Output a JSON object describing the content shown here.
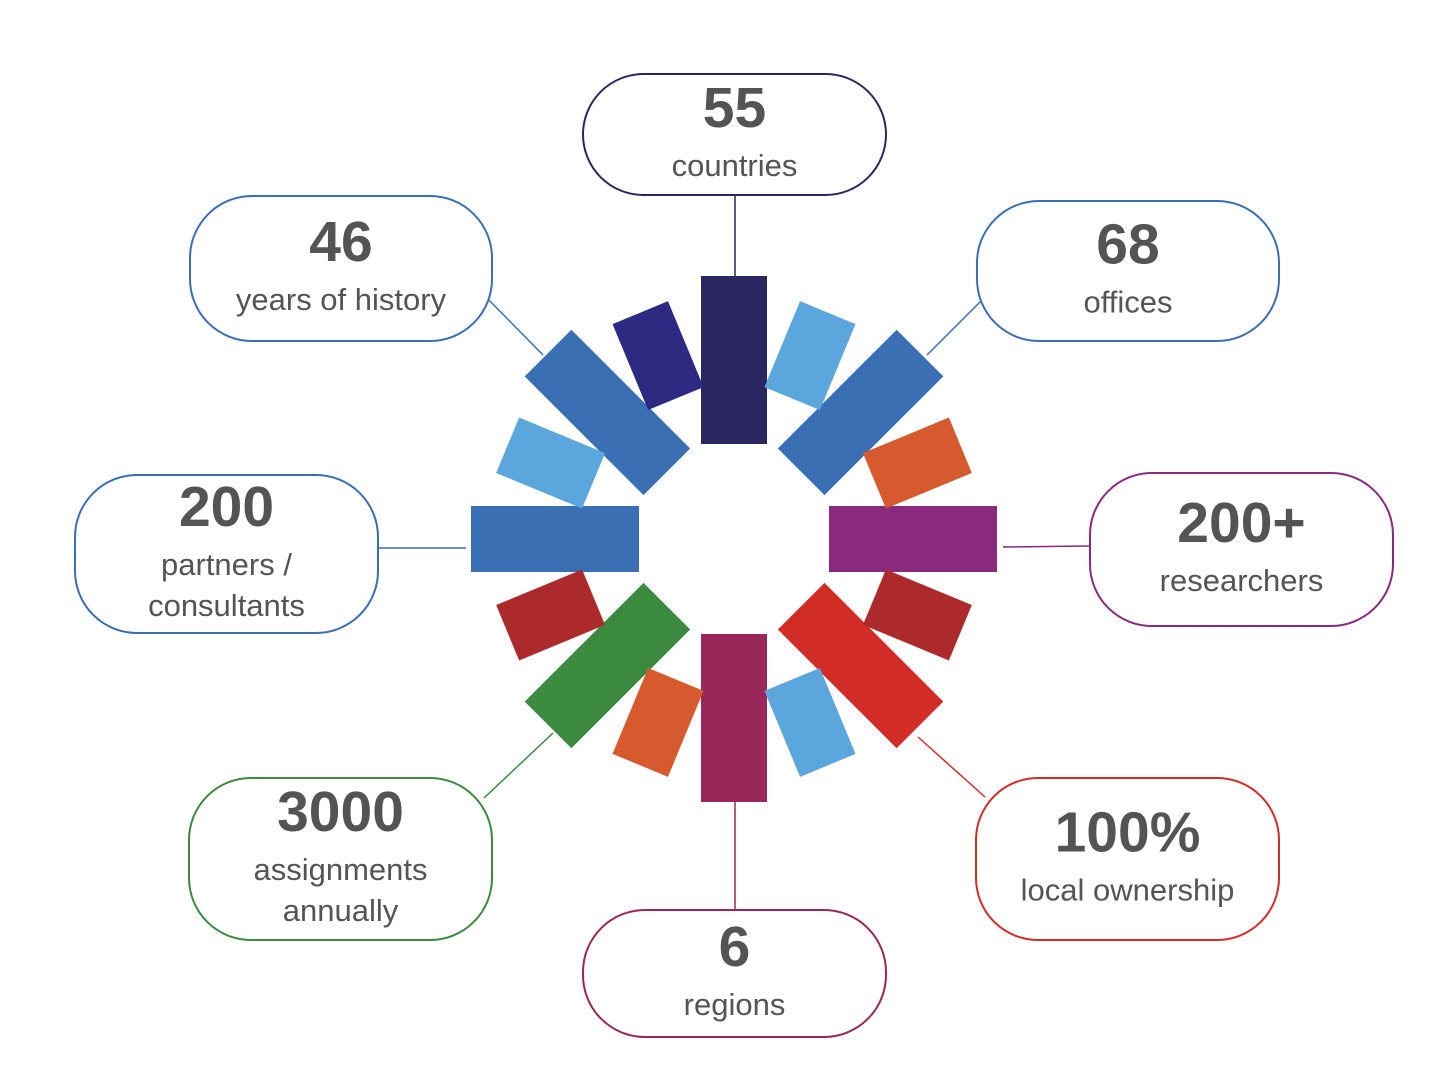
{
  "stats": [
    {
      "id": "countries",
      "value": "55",
      "label_lines": [
        "countries"
      ],
      "color": "#2a2660"
    },
    {
      "id": "offices",
      "value": "68",
      "label_lines": [
        "offices"
      ],
      "color": "#3a6fb3"
    },
    {
      "id": "researchers",
      "value": "200+",
      "label_lines": [
        "researchers"
      ],
      "color": "#8a2a7e"
    },
    {
      "id": "ownership",
      "value": "100%",
      "label_lines": [
        "local ownership"
      ],
      "color": "#d22c27"
    },
    {
      "id": "regions",
      "value": "6",
      "label_lines": [
        "regions"
      ],
      "color": "#9a2759"
    },
    {
      "id": "assignments",
      "value": "3000",
      "label_lines": [
        "assignments",
        "annually"
      ],
      "color": "#3c8a40"
    },
    {
      "id": "partners",
      "value": "200",
      "label_lines": [
        "partners /",
        "consultants"
      ],
      "color": "#3a6fb3"
    },
    {
      "id": "history",
      "value": "46",
      "label_lines": [
        "years of history"
      ],
      "color": "#3a6fb3"
    }
  ],
  "wheel": {
    "long_bar_colors": [
      "#2a2660",
      "#3a6fb3",
      "#8a2a7e",
      "#d22c27",
      "#9a2759",
      "#3c8a40",
      "#3a6fb3",
      "#3a6fb3"
    ],
    "short_bar_colors": [
      "#5ba6dc",
      "#d65a2e",
      "#ac2a2b",
      "#5ba6dc",
      "#d65a2e",
      "#ac2a2b",
      "#5ba6dc",
      "#2e2a82"
    ]
  }
}
